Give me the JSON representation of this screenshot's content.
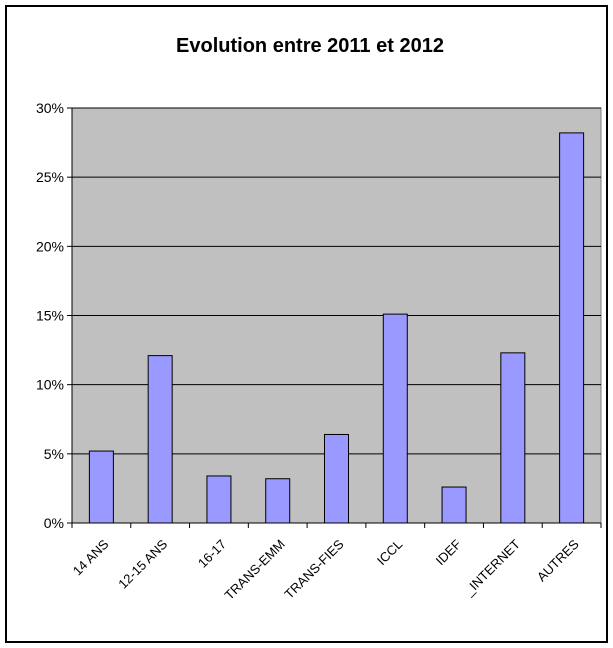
{
  "chart_data": {
    "type": "bar",
    "title": "Evolution entre 2011 et 2012",
    "xlabel": "",
    "ylabel": "",
    "categories": [
      "14 ANS",
      "12-15 ANS",
      "16-17",
      "TRANS-EMM",
      "TRANS-FIES",
      "ICCL",
      "IDEF",
      "_INTERNET",
      "AUTRES"
    ],
    "values": [
      5.2,
      12.1,
      3.4,
      3.2,
      6.4,
      15.1,
      2.6,
      12.3,
      28.2
    ],
    "value_format": "percent",
    "ylim": [
      0,
      30
    ],
    "yticks": [
      "0%",
      "5%",
      "10%",
      "15%",
      "20%",
      "25%",
      "30%"
    ],
    "ytick_values": [
      0,
      5,
      10,
      15,
      20,
      25,
      30
    ],
    "grid": true,
    "legend": "none",
    "colors": {
      "plot_background": "#c0c0c0",
      "bar_fill": "#9999ff",
      "bar_stroke": "#000000",
      "grid": "#000000"
    }
  }
}
